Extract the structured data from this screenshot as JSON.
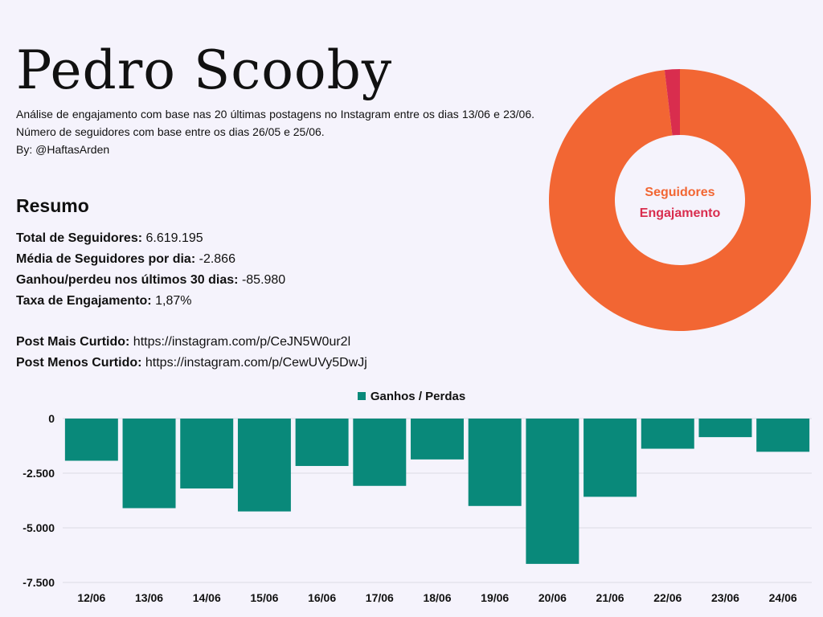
{
  "header": {
    "title": "Pedro Scooby",
    "subtitle": "Análise de engajamento com base nas 20 últimas postagens no Instagram entre os dias 13/06 e 23/06. Número de seguidores com base entre os dias 26/05 e 25/06.",
    "byline": "By: @HaftasArden"
  },
  "summary": {
    "heading": "Resumo",
    "items": [
      {
        "label": "Total de Seguidores:",
        "value": "6.619.195"
      },
      {
        "label": "Média de Seguidores por dia:",
        "value": "-2.866"
      },
      {
        "label": "Ganhou/perdeu nos últimos 30 dias:",
        "value": "-85.980"
      },
      {
        "label": "Taxa de Engajamento:",
        "value": "1,87%"
      }
    ],
    "links": [
      {
        "label": "Post Mais Curtido:",
        "value": "https://instagram.com/p/CeJN5W0ur2l"
      },
      {
        "label": "Post Menos Curtido:",
        "value": "https://instagram.com/p/CewUVy5DwJj"
      }
    ]
  },
  "colors": {
    "background": "#f5f3fc",
    "followers": "#f26633",
    "engagement": "#d92d4e",
    "bars": "#09897a",
    "grid": "#dcdbe3"
  },
  "chart_data": [
    {
      "type": "pie",
      "variant": "donut",
      "center_labels": [
        "Seguidores",
        "Engajamento"
      ],
      "slices": [
        {
          "name": "Seguidores",
          "value": 98.13
        },
        {
          "name": "Engajamento",
          "value": 1.87
        }
      ],
      "legend": "center"
    },
    {
      "type": "bar",
      "categories": [
        "12/06",
        "13/06",
        "14/06",
        "15/06",
        "16/06",
        "17/06",
        "18/06",
        "19/06",
        "20/06",
        "21/06",
        "22/06",
        "23/06",
        "24/06"
      ],
      "series": [
        {
          "name": "Ganhos / Perdas",
          "values": [
            -1930,
            -4100,
            -3200,
            -4250,
            -2170,
            -3080,
            -1870,
            -4000,
            -6650,
            -3580,
            -1380,
            -850,
            -1520
          ]
        }
      ],
      "ylim": [
        -7500,
        0
      ],
      "yticks": [
        0,
        -2500,
        -5000,
        -7500
      ],
      "ytick_labels": [
        "0",
        "-2.500",
        "-5.000",
        "-7.500"
      ],
      "grid": true,
      "legend": "top-center"
    }
  ]
}
